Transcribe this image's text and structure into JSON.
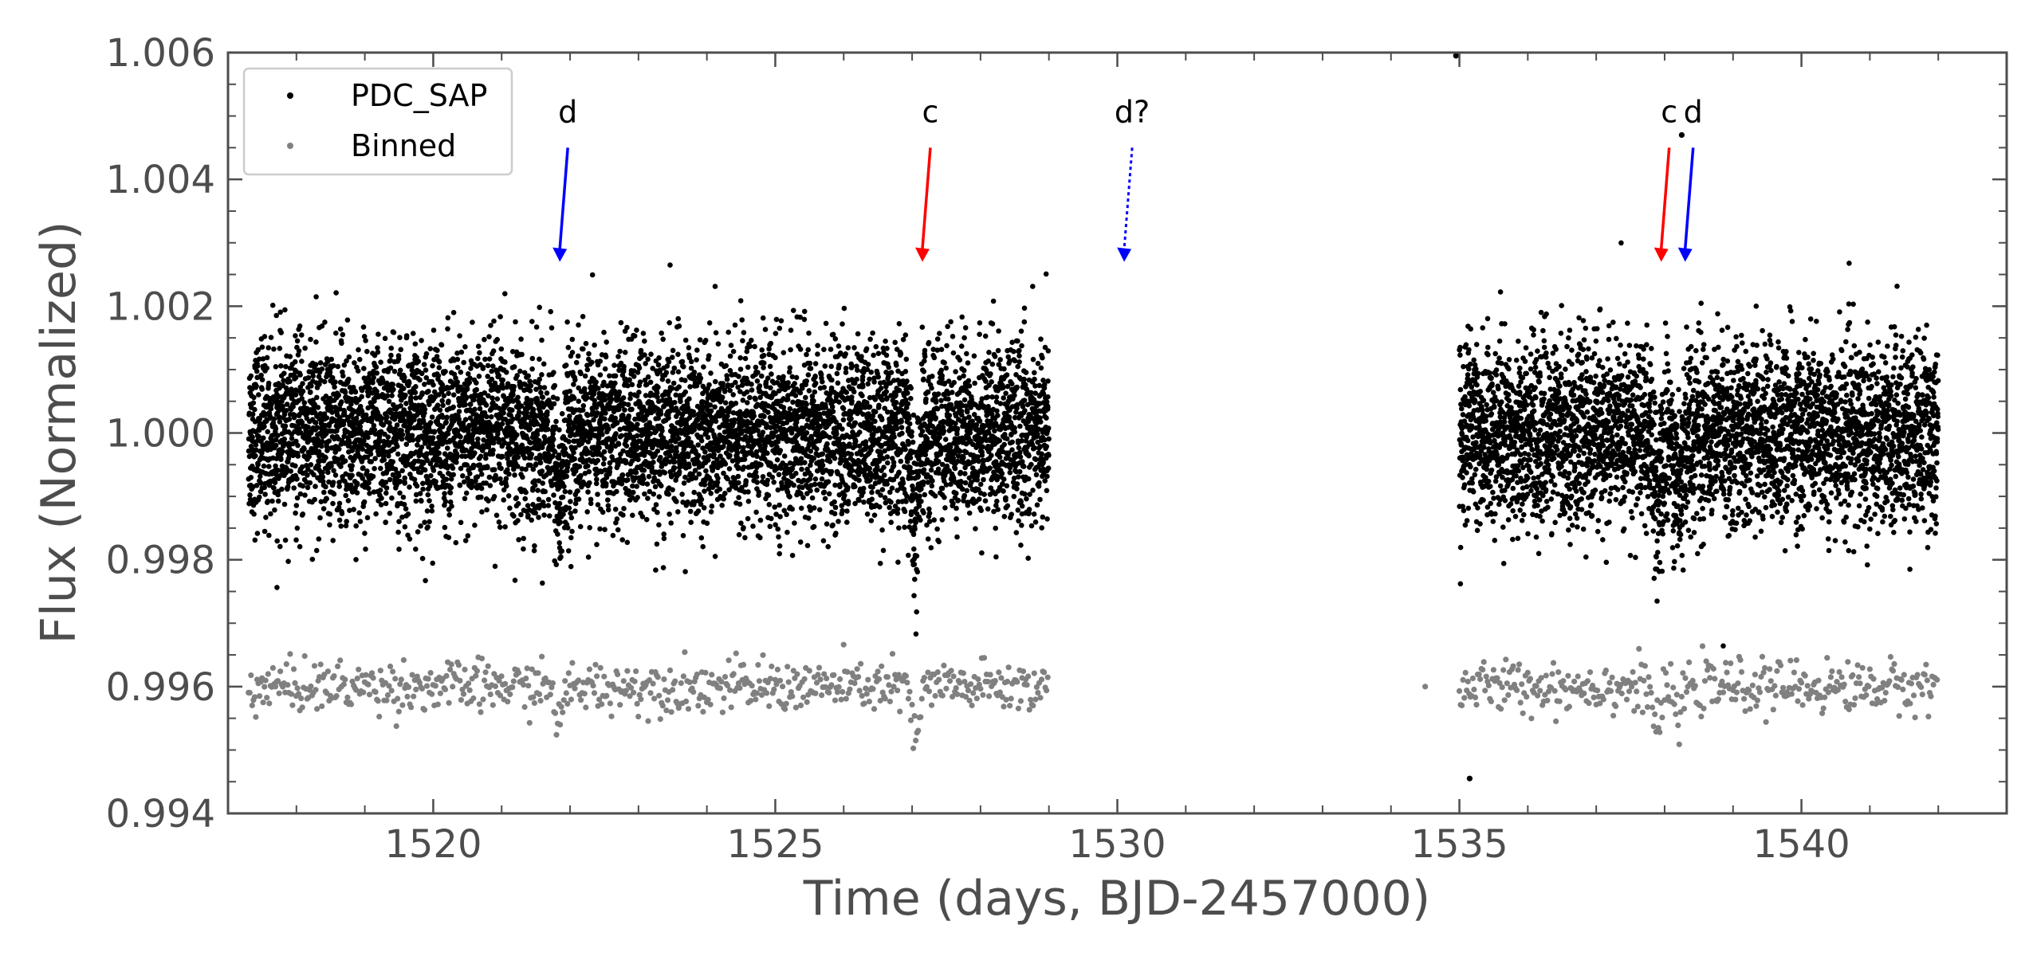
{
  "chart_data": {
    "type": "scatter",
    "title": "",
    "xlabel": "Time (days, BJD-2457000)",
    "ylabel": "Flux (Normalized)",
    "xlim": [
      1517.0,
      1543.0
    ],
    "ylim": [
      0.994,
      1.006
    ],
    "x_ticks": [
      1520,
      1525,
      1530,
      1535,
      1540
    ],
    "y_ticks": [
      0.994,
      0.996,
      0.998,
      1.0,
      1.002,
      1.004,
      1.006
    ],
    "x_tick_labels": [
      "1520",
      "1525",
      "1530",
      "1535",
      "1540"
    ],
    "y_tick_labels": [
      "0.994",
      "0.996",
      "0.998",
      "1.000",
      "1.002",
      "1.004",
      "1.006"
    ],
    "grid": false,
    "legend": {
      "placement": "top-left",
      "entries": [
        "PDC_SAP",
        "Binned"
      ]
    },
    "series": [
      {
        "name": "PDC_SAP",
        "color": "#000000",
        "segments": [
          {
            "x_start": 1517.3,
            "x_end": 1529.0
          },
          {
            "x_start": 1535.0,
            "x_end": 1542.0
          }
        ],
        "baseline": 1.0,
        "scatter": 0.0007,
        "transit_dips": [
          {
            "x": 1521.85,
            "depth": 0.0012
          },
          {
            "x": 1527.05,
            "depth": 0.0018
          },
          {
            "x": 1537.9,
            "depth": 0.0014
          },
          {
            "x": 1538.2,
            "depth": 0.001
          }
        ],
        "outliers": [
          {
            "x": 1534.95,
            "y": 1.00595
          },
          {
            "x": 1535.15,
            "y": 0.99455
          },
          {
            "x": 1538.25,
            "y": 1.0047
          }
        ]
      },
      {
        "name": "Binned",
        "color": "#808080",
        "offset": -0.004,
        "segments": [
          {
            "x_start": 1517.3,
            "x_end": 1529.0
          },
          {
            "x_start": 1535.0,
            "x_end": 1542.0
          }
        ],
        "baseline": 0.996,
        "scatter": 0.0002,
        "outliers": [
          {
            "x": 1534.5,
            "y": 0.996
          }
        ]
      }
    ],
    "annotations": [
      {
        "text": "d",
        "x": 1521.85,
        "color": "#0000ff",
        "style": "solid"
      },
      {
        "text": "c",
        "x": 1527.15,
        "color": "#ff0000",
        "style": "solid"
      },
      {
        "text": "d?",
        "x": 1530.1,
        "color": "#0000ff",
        "style": "dotted"
      },
      {
        "text": "c",
        "x": 1537.95,
        "color": "#ff0000",
        "style": "solid"
      },
      {
        "text": "d",
        "x": 1538.3,
        "color": "#0000ff",
        "style": "solid"
      }
    ]
  }
}
